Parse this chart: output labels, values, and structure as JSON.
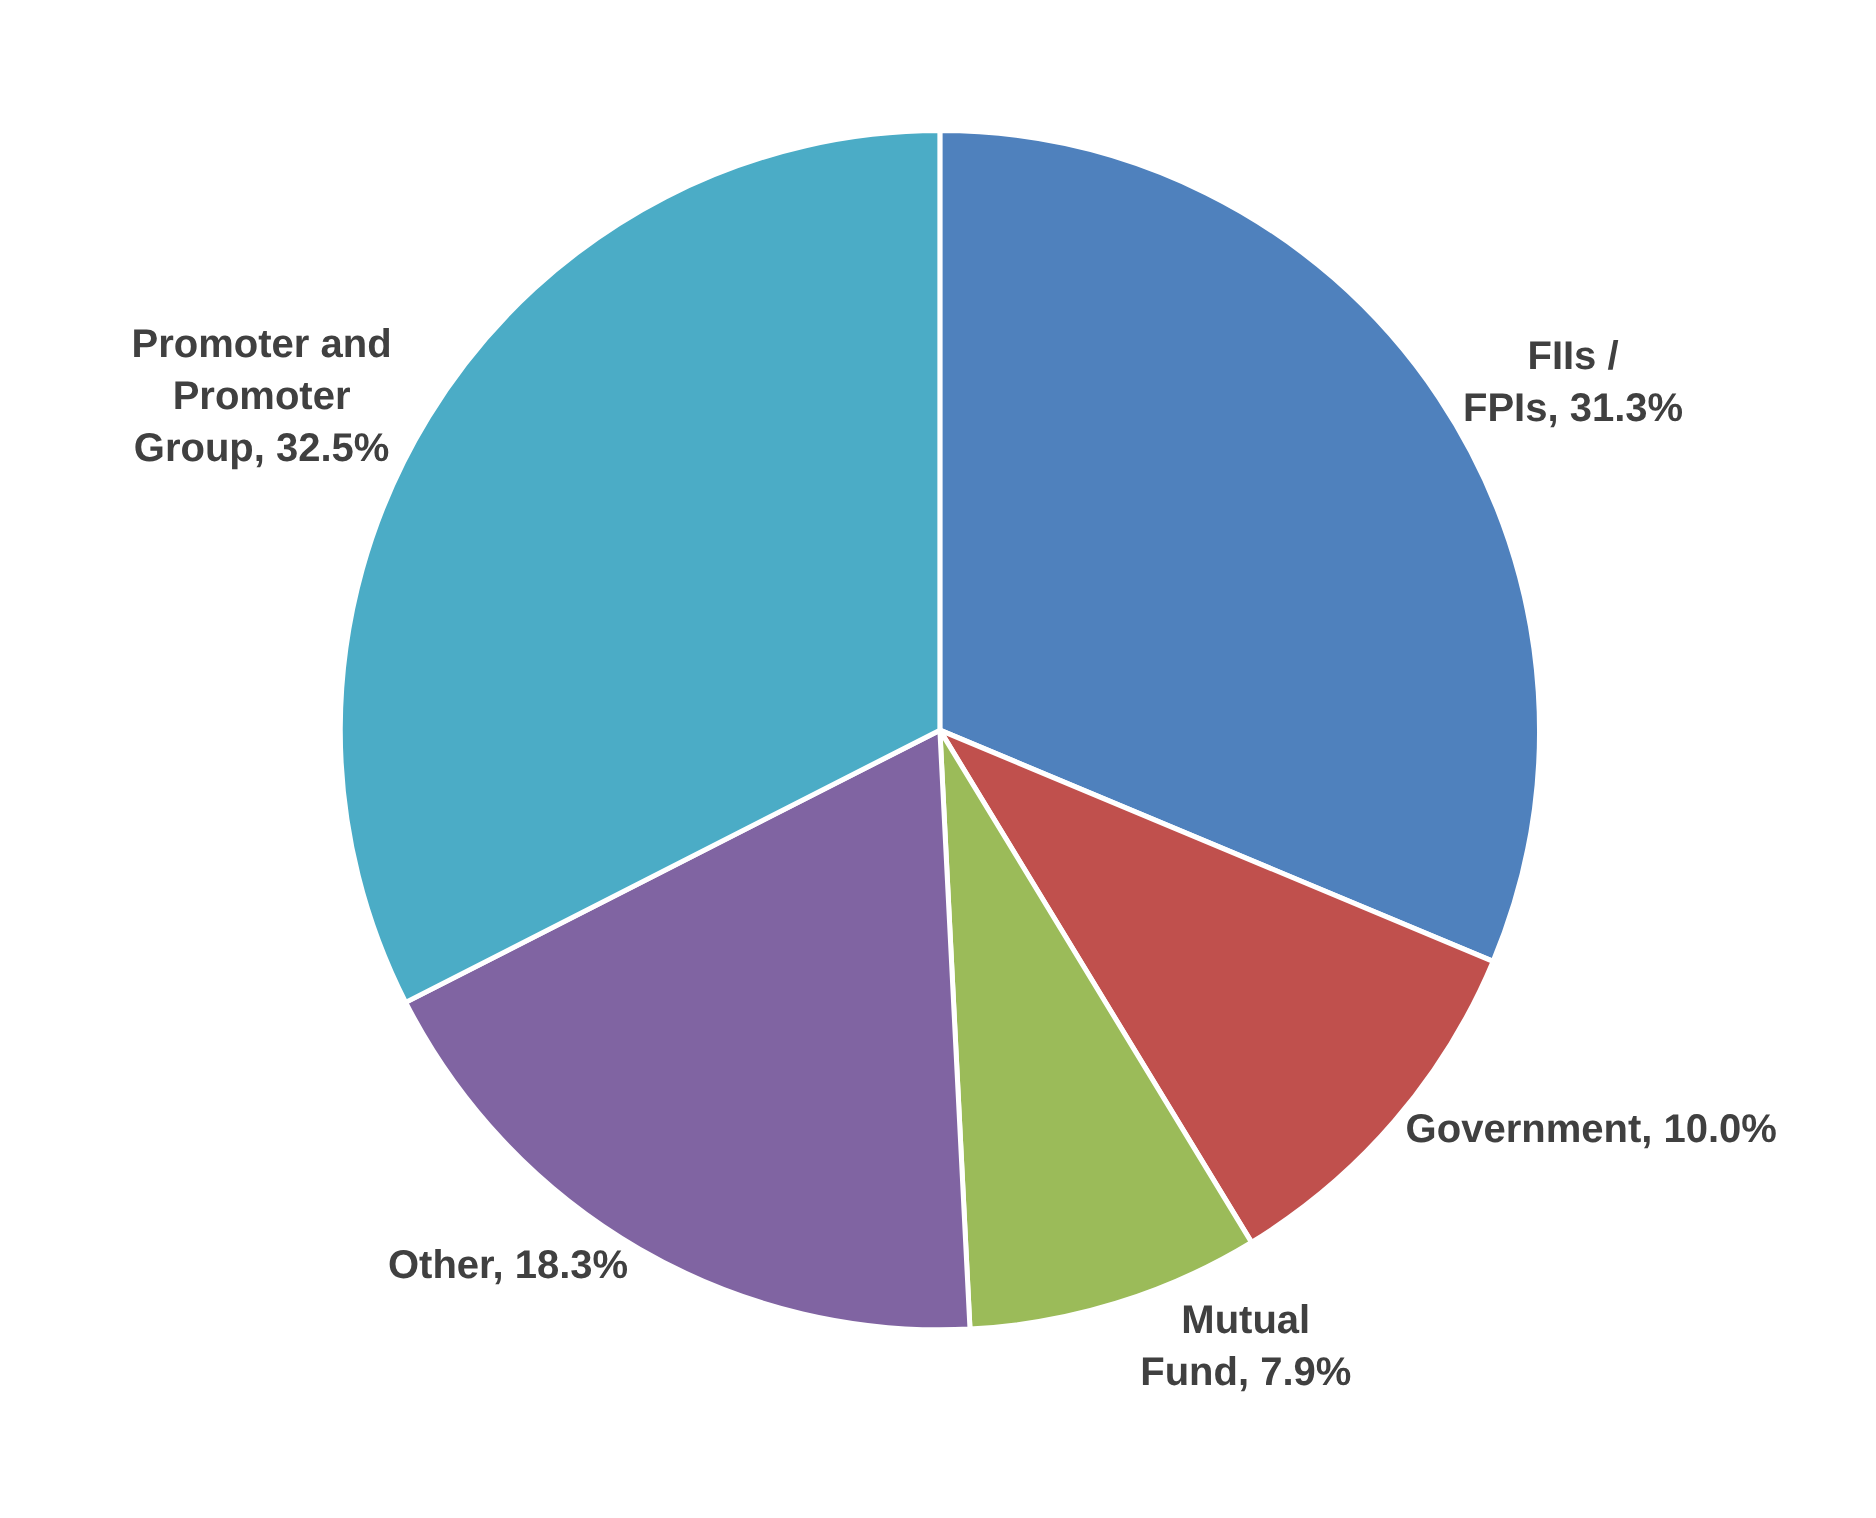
{
  "chart_data": {
    "type": "pie",
    "categories": [
      "FIIs / FPIs",
      "Government",
      "Mutual Fund",
      "Other",
      "Promoter and Promoter Group"
    ],
    "values": [
      31.3,
      10.0,
      7.9,
      18.3,
      32.5
    ],
    "value_labels": [
      "31.3%",
      "10.0%",
      "7.9%",
      "18.3%",
      "32.5%"
    ],
    "colors": [
      "#4f81bd",
      "#c0504d",
      "#9bbb59",
      "#8064a2",
      "#4bacc6"
    ],
    "legend": false
  }
}
